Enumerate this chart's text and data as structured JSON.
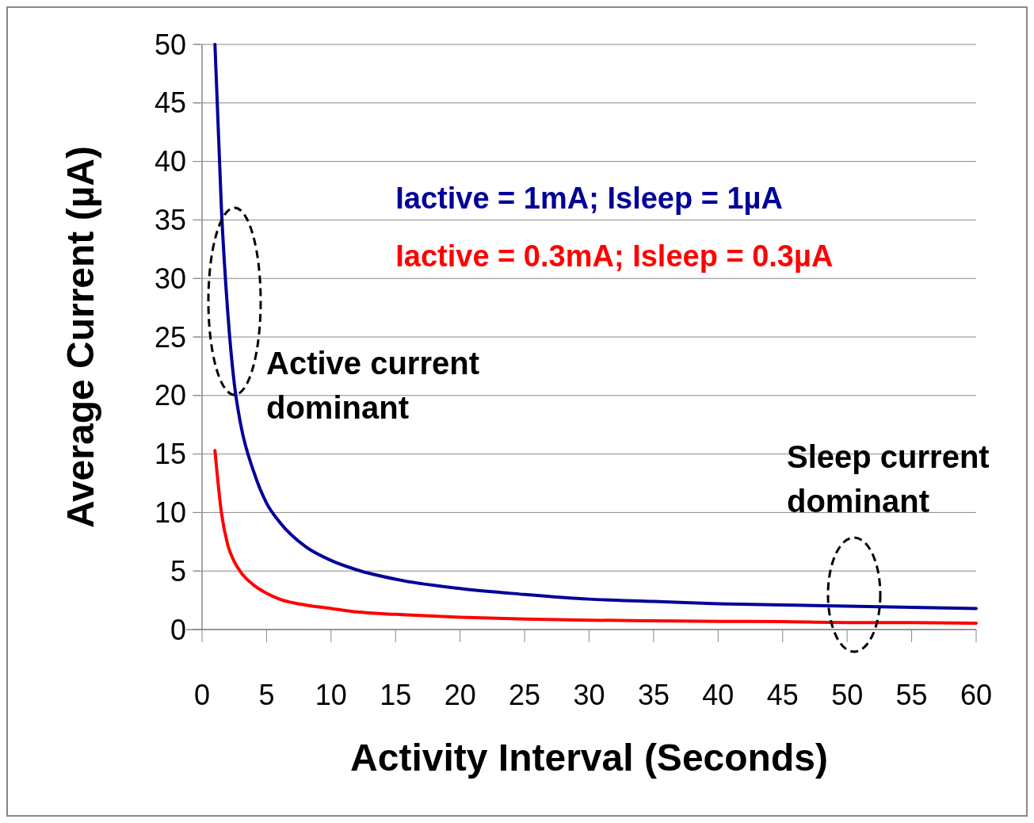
{
  "chart_data": {
    "type": "line",
    "xlabel": "Activity Interval (Seconds)",
    "ylabel": "Average Current (µA)",
    "xlim": [
      0,
      60
    ],
    "xticks": [
      0,
      5,
      10,
      15,
      20,
      25,
      30,
      35,
      40,
      45,
      50,
      55,
      60
    ],
    "ylim": [
      0,
      50
    ],
    "yticks": [
      0,
      5,
      10,
      15,
      20,
      25,
      30,
      35,
      40,
      45,
      50
    ],
    "grid": "y",
    "legend": "top right",
    "marker": "none",
    "line_style": "solid",
    "x": [
      1,
      1.5,
      2,
      2.5,
      3,
      4,
      5,
      6,
      8,
      10,
      12,
      15,
      20,
      25,
      30,
      35,
      40,
      45,
      50,
      55,
      60
    ],
    "series": [
      {
        "name": "Iactive = 1mA; Isleep = 1µA",
        "color": "#000099",
        "values": [
          50,
          36,
          27,
          21,
          17.5,
          13.5,
          10.8,
          9.2,
          7.1,
          5.9,
          5.1,
          4.3,
          3.5,
          3.0,
          2.6,
          2.4,
          2.2,
          2.1,
          2.0,
          1.9,
          1.8
        ]
      },
      {
        "name": "Iactive = 0.3mA; Isleep = 0.3µA",
        "color": "#ff0000",
        "values": [
          15.3,
          10,
          7.2,
          5.8,
          4.9,
          3.8,
          3.1,
          2.6,
          2.1,
          1.8,
          1.5,
          1.3,
          1.05,
          0.9,
          0.8,
          0.75,
          0.7,
          0.67,
          0.6,
          0.6,
          0.55
        ]
      }
    ],
    "annotations": [
      "Active current dominant",
      "Sleep current dominant"
    ]
  }
}
